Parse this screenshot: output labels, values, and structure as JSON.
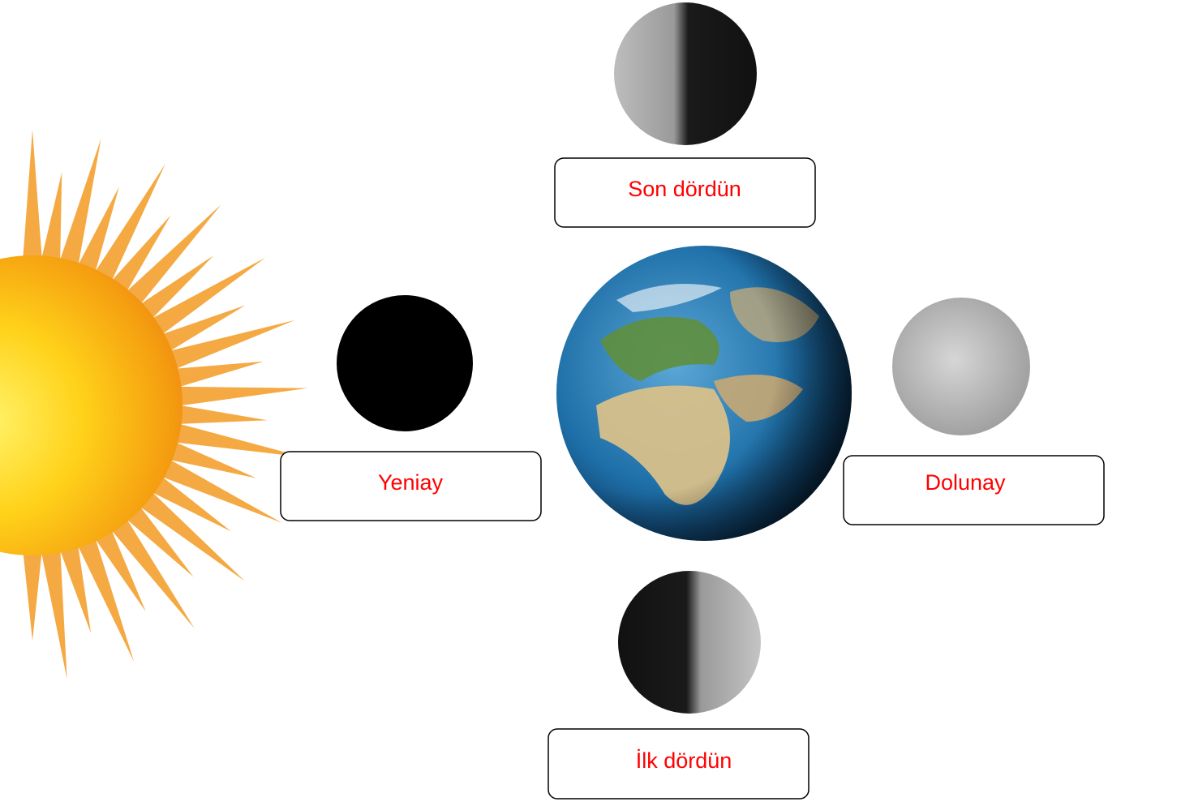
{
  "labels": {
    "top": "Son dördün",
    "left": "Yeniay",
    "right": "Dolunay",
    "bottom": "İlk dördün"
  }
}
